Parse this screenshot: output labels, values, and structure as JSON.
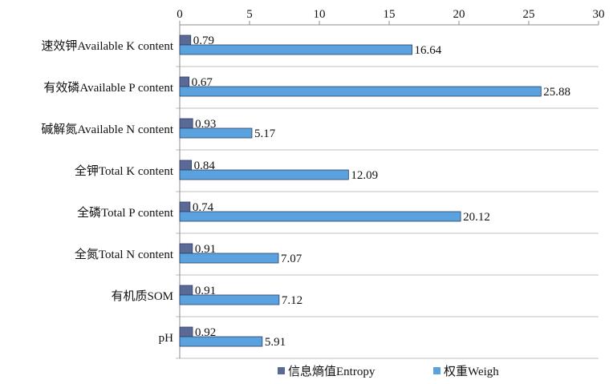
{
  "chart_data": {
    "type": "bar",
    "orientation": "horizontal",
    "title": "",
    "xlabel": "",
    "ylabel": "",
    "xlim": [
      0,
      30
    ],
    "x_ticks": [
      "0",
      "5",
      "10",
      "15",
      "20",
      "25",
      "30"
    ],
    "x_axis_position": "top",
    "grid": "horizontal separators between categories",
    "legend_position": "bottom",
    "categories": [
      "速效钾Available K content",
      "有效磷Available P content",
      "碱解氮Available N content",
      "全钾Total K content",
      "全磷Total P content",
      "全氮Total N content",
      "有机质SOM",
      "pH"
    ],
    "series": [
      {
        "name": "信息熵值Entropy",
        "color": "#5a6a94",
        "values": [
          0.79,
          0.67,
          0.93,
          0.84,
          0.74,
          0.91,
          0.91,
          0.92
        ],
        "labels": [
          "0.79",
          "0.67",
          "0.93",
          "0.84",
          "0.74",
          "0.91",
          "0.91",
          "0.92"
        ]
      },
      {
        "name": "权重Weigh",
        "color": "#59a2dd",
        "values": [
          16.64,
          25.88,
          5.17,
          12.09,
          20.12,
          7.07,
          7.12,
          5.91
        ],
        "labels": [
          "16.64",
          "25.88",
          "5.17",
          "12.09",
          "20.12",
          "7.07",
          "7.12",
          "5.91"
        ]
      }
    ]
  }
}
